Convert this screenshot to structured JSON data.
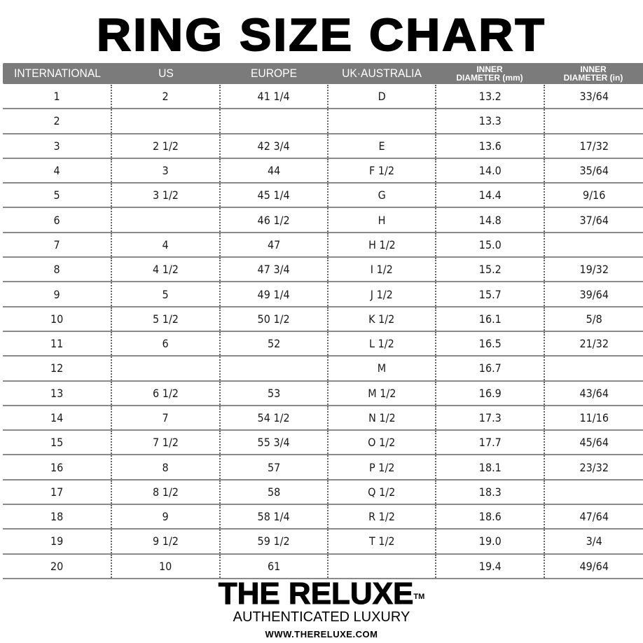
{
  "title": "RING SIZE CHART",
  "colors": {
    "header_bg": "#7b7b7b",
    "header_text": "#ffffff"
  },
  "columns": [
    {
      "label": "INTERNATIONAL"
    },
    {
      "label": "US"
    },
    {
      "label": "EUROPE"
    },
    {
      "label": "UK·AUSTRALIA"
    },
    {
      "line1": "INNER",
      "line2": "DIAMETER (mm)"
    },
    {
      "line1": "INNER",
      "line2": "DIAMETER (in)"
    }
  ],
  "rows": [
    [
      "1",
      "2",
      "41 1/4",
      "D",
      "13.2",
      "33/64"
    ],
    [
      "2",
      "",
      "",
      "",
      "13.3",
      ""
    ],
    [
      "3",
      "2 1/2",
      "42 3/4",
      "E",
      "13.6",
      "17/32"
    ],
    [
      "4",
      "3",
      "44",
      "F 1/2",
      "14.0",
      "35/64"
    ],
    [
      "5",
      "3 1/2",
      "45 1/4",
      "G",
      "14.4",
      "9/16"
    ],
    [
      "6",
      "",
      "46 1/2",
      "H",
      "14.8",
      "37/64"
    ],
    [
      "7",
      "4",
      "47",
      "H 1/2",
      "15.0",
      ""
    ],
    [
      "8",
      "4 1/2",
      "47 3/4",
      "I 1/2",
      "15.2",
      "19/32"
    ],
    [
      "9",
      "5",
      "49 1/4",
      "J 1/2",
      "15.7",
      "39/64"
    ],
    [
      "10",
      "5 1/2",
      "50 1/2",
      "K 1/2",
      "16.1",
      "5/8"
    ],
    [
      "11",
      "6",
      "52",
      "L 1/2",
      "16.5",
      "21/32"
    ],
    [
      "12",
      "",
      "",
      "M",
      "16.7",
      ""
    ],
    [
      "13",
      "6 1/2",
      "53",
      "M 1/2",
      "16.9",
      "43/64"
    ],
    [
      "14",
      "7",
      "54 1/2",
      "N 1/2",
      "17.3",
      "11/16"
    ],
    [
      "15",
      "7 1/2",
      "55 3/4",
      "O 1/2",
      "17.7",
      "45/64"
    ],
    [
      "16",
      "8",
      "57",
      "P 1/2",
      "18.1",
      "23/32"
    ],
    [
      "17",
      "8 1/2",
      "58",
      "Q 1/2",
      "18.3",
      ""
    ],
    [
      "18",
      "9",
      "58 1/4",
      "R 1/2",
      "18.6",
      "47/64"
    ],
    [
      "19",
      "9 1/2",
      "59 1/2",
      "T 1/2",
      "19.0",
      "3/4"
    ],
    [
      "20",
      "10",
      "61",
      "",
      "19.4",
      "49/64"
    ]
  ],
  "brand": {
    "name": "THE RELUXE",
    "trademark": "TM",
    "tagline": "AUTHENTICATED LUXURY",
    "url": "WWW.THERELUXE.COM"
  }
}
